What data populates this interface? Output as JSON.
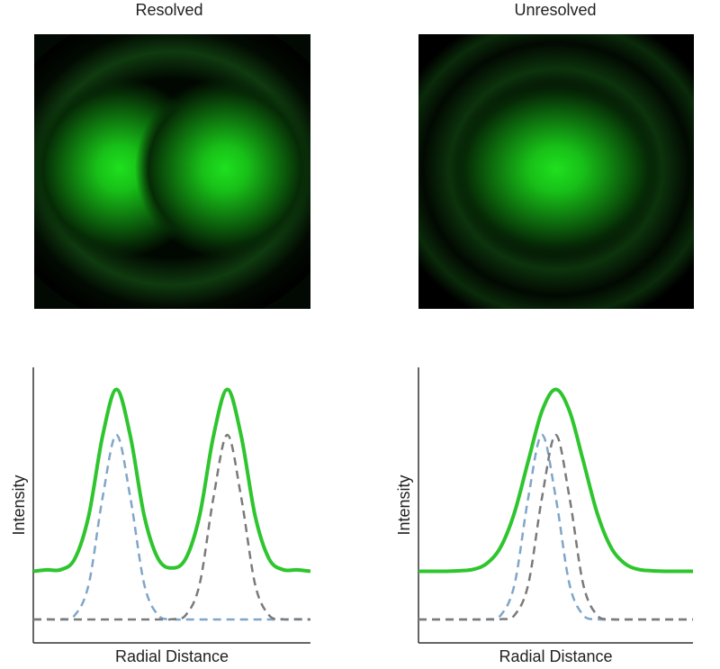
{
  "chart_data": [
    {
      "type": "line",
      "title": "Resolved",
      "xlabel": "Radial Distance",
      "ylabel": "Intensity",
      "xlim": [
        0,
        10
      ],
      "ylim": [
        0,
        1
      ],
      "x": [
        0,
        0.5,
        1,
        1.5,
        2,
        2.5,
        3,
        3.5,
        4,
        4.5,
        5,
        5.5,
        6,
        6.5,
        7,
        7.5,
        8,
        8.5,
        9,
        9.5,
        10
      ],
      "series": [
        {
          "color": "#2ec52e",
          "style": "solid",
          "values": [
            0.26,
            0.265,
            0.266,
            0.306,
            0.462,
            0.751,
            0.92,
            0.751,
            0.462,
            0.306,
            0.272,
            0.306,
            0.462,
            0.751,
            0.92,
            0.751,
            0.462,
            0.306,
            0.266,
            0.265,
            0.26
          ]
        },
        {
          "color": "#7fa6c9",
          "style": "dashed",
          "values": [
            0.085,
            0.086,
            0.086,
            0.101,
            0.213,
            0.528,
            0.755,
            0.528,
            0.213,
            0.101,
            0.086,
            0.085,
            0.085,
            0.085,
            0.085,
            0.085,
            0.085,
            0.085,
            0.085,
            0.085,
            0.085
          ]
        },
        {
          "color": "#7a7a7a",
          "style": "dashed",
          "values": [
            0.085,
            0.085,
            0.085,
            0.085,
            0.085,
            0.085,
            0.085,
            0.085,
            0.085,
            0.085,
            0.086,
            0.101,
            0.213,
            0.528,
            0.755,
            0.528,
            0.213,
            0.101,
            0.086,
            0.086,
            0.085
          ]
        }
      ]
    },
    {
      "type": "line",
      "title": "Unresolved",
      "xlabel": "Radial Distance",
      "ylabel": "Intensity",
      "xlim": [
        0,
        10
      ],
      "ylim": [
        0,
        1
      ],
      "x": [
        0,
        0.5,
        1,
        1.5,
        2,
        2.5,
        3,
        3.5,
        4,
        4.5,
        5,
        5.5,
        6,
        6.5,
        7,
        7.5,
        8,
        8.5,
        9,
        9.5,
        10
      ],
      "series": [
        {
          "color": "#2ec52e",
          "style": "solid",
          "values": [
            0.26,
            0.26,
            0.26,
            0.262,
            0.267,
            0.289,
            0.349,
            0.474,
            0.661,
            0.842,
            0.92,
            0.842,
            0.661,
            0.474,
            0.349,
            0.289,
            0.267,
            0.262,
            0.26,
            0.26,
            0.26
          ]
        },
        {
          "color": "#7fa6c9",
          "style": "dashed",
          "values": [
            0.085,
            0.085,
            0.085,
            0.085,
            0.085,
            0.086,
            0.101,
            0.213,
            0.528,
            0.755,
            0.528,
            0.213,
            0.101,
            0.086,
            0.085,
            0.085,
            0.085,
            0.085,
            0.085,
            0.085,
            0.085
          ]
        },
        {
          "color": "#7a7a7a",
          "style": "dashed",
          "values": [
            0.085,
            0.085,
            0.085,
            0.085,
            0.085,
            0.085,
            0.086,
            0.101,
            0.213,
            0.528,
            0.755,
            0.528,
            0.213,
            0.101,
            0.086,
            0.085,
            0.085,
            0.085,
            0.085,
            0.085,
            0.085
          ]
        }
      ]
    }
  ]
}
